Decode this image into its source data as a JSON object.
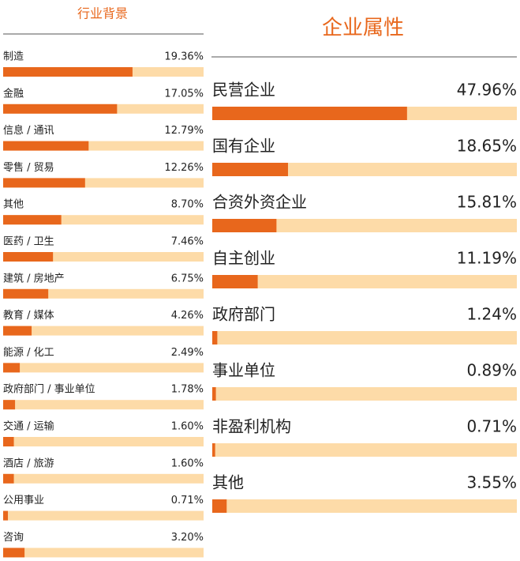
{
  "chart_data": [
    {
      "type": "bar",
      "orientation": "horizontal",
      "title": "行业背景",
      "categories": [
        "制造",
        "金融",
        "信息 / 通讯",
        "零售 / 贸易",
        "其他",
        "医药 / 卫生",
        "建筑 / 房地产",
        "教育 / 媒体",
        "能源 / 化工",
        "政府部门 / 事业单位",
        "交通 / 运输",
        "酒店 / 旅游",
        "公用事业",
        "咨询"
      ],
      "values": [
        19.36,
        17.05,
        12.79,
        12.26,
        8.7,
        7.46,
        6.75,
        4.26,
        2.49,
        1.78,
        1.6,
        1.6,
        0.71,
        3.2
      ],
      "value_labels": [
        "19.36%",
        "17.05%",
        "12.79%",
        "12.26%",
        "8.70%",
        "7.46%",
        "6.75%",
        "4.26%",
        "2.49%",
        "1.78%",
        "1.60%",
        "1.60%",
        "0.71%",
        "3.20%"
      ],
      "color": "#e8671c",
      "track_color": "#fddba8",
      "xlim": [
        0,
        30
      ]
    },
    {
      "type": "bar",
      "orientation": "horizontal",
      "title": "企业属性",
      "categories": [
        "民营企业",
        "国有企业",
        "合资外资企业",
        "自主创业",
        "政府部门",
        "事业单位",
        "非盈利机构",
        "其他"
      ],
      "values": [
        47.96,
        18.65,
        15.81,
        11.19,
        1.24,
        0.89,
        0.71,
        3.55
      ],
      "value_labels": [
        "47.96%",
        "18.65%",
        "15.81%",
        "11.19%",
        "1.24%",
        "0.89%",
        "0.71%",
        "3.55%"
      ],
      "color": "#e8671c",
      "track_color": "#fddba8",
      "xlim": [
        0,
        75
      ]
    }
  ]
}
